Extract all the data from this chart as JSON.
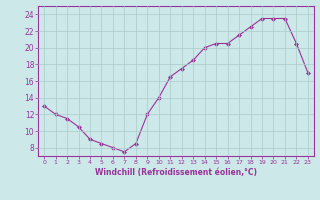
{
  "x_data": [
    0,
    1,
    2,
    3,
    4,
    5,
    6,
    7,
    8,
    9,
    10,
    11,
    12,
    13,
    14,
    15,
    16,
    17,
    18,
    19,
    20,
    21,
    22,
    23
  ],
  "y_data": [
    13.0,
    12.0,
    11.5,
    10.5,
    9.0,
    8.5,
    8.0,
    7.5,
    8.5,
    12.0,
    14.0,
    16.5,
    17.5,
    18.5,
    20.0,
    20.5,
    20.5,
    21.5,
    22.5,
    23.5,
    23.5,
    23.5,
    20.5,
    17.0
  ],
  "line_color": "#993399",
  "marker_color": "#993399",
  "bg_color": "#cce8e8",
  "grid_color": "#b0d0d0",
  "axis_label_color": "#993399",
  "tick_color": "#993399",
  "xlabel": "Windchill (Refroidissement éolien,°C)",
  "ylim": [
    7,
    25
  ],
  "yticks": [
    8,
    10,
    12,
    14,
    16,
    18,
    20,
    22,
    24
  ],
  "xticks": [
    0,
    1,
    2,
    3,
    4,
    5,
    6,
    7,
    8,
    9,
    10,
    11,
    12,
    13,
    14,
    15,
    16,
    17,
    18,
    19,
    20,
    21,
    22,
    23
  ],
  "xlim": [
    -0.5,
    23.5
  ]
}
